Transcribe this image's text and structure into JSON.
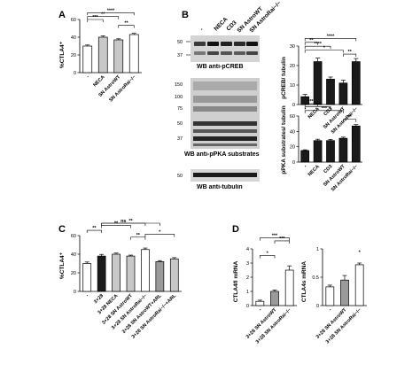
{
  "panel_letters": {
    "a": "A",
    "b": "B",
    "c": "C",
    "d": "D"
  },
  "blots": {
    "lane_labels": [
      "-",
      "NECA",
      "CD3",
      "SN AstroWT",
      "SN AstroRai−/−"
    ],
    "captions": {
      "pcreb": "WB anti-pCREB",
      "ppka": "WB anti-pPKA substrates",
      "tubulin": "WB anti-tubulin"
    },
    "mw_markers": {
      "pcreb": [
        "50",
        "37"
      ],
      "ppka": [
        "150",
        "100",
        "75",
        "50",
        "37"
      ],
      "tubulin": [
        "50"
      ]
    }
  },
  "colors": {
    "ink": "#000000",
    "light_bar": "#ffffff",
    "mid_bar": "#c8c8c8",
    "dark_bar": "#1a1a1a",
    "gray_bar": "#9a9a9a"
  },
  "chart_data": [
    {
      "id": "panel-a",
      "type": "bar",
      "ylabel": "%CTLA4⁺",
      "categories": [
        "-",
        "NECA",
        "SN AstroWT",
        "SN AstroRai−/−"
      ],
      "values": [
        30,
        40,
        37,
        43
      ],
      "errors": [
        1.2,
        1.5,
        1.2,
        1.3
      ],
      "fills": [
        "#ffffff",
        "#c8c8c8",
        "#c8c8c8",
        "#ffffff"
      ],
      "ylim": [
        0,
        60
      ],
      "yticks": [
        0,
        20,
        40,
        60
      ],
      "significance": [
        "****",
        "**",
        "***",
        "**"
      ]
    },
    {
      "id": "panel-b-top",
      "type": "bar",
      "ylabel": "pCREB/ tubulin",
      "categories": [
        "-",
        "NECA",
        "CD3",
        "SN AstroWT",
        "SN AstroRai−/−"
      ],
      "values": [
        4,
        22,
        13,
        11,
        22
      ],
      "errors": [
        1.2,
        1.8,
        1.1,
        1.5,
        1.6
      ],
      "fills": [
        "#1a1a1a",
        "#1a1a1a",
        "#1a1a1a",
        "#1a1a1a",
        "#1a1a1a"
      ],
      "ylim": [
        0,
        30
      ],
      "yticks": [
        0,
        10,
        20,
        30
      ],
      "significance": [
        "****",
        "**",
        "****",
        "*",
        "**"
      ]
    },
    {
      "id": "panel-b-bottom",
      "type": "bar",
      "ylabel": "pPKA substrates/ tubulin",
      "categories": [
        "-",
        "NECA",
        "CD3",
        "SN AstroWT",
        "SN AstroRai−/−"
      ],
      "values": [
        15,
        28,
        28,
        31,
        47
      ],
      "errors": [
        1.0,
        1.8,
        1.6,
        1.5,
        1.8
      ],
      "fills": [
        "#1a1a1a",
        "#1a1a1a",
        "#1a1a1a",
        "#1a1a1a",
        "#1a1a1a"
      ],
      "ylim": [
        0,
        60
      ],
      "yticks": [
        0,
        20,
        40,
        60
      ],
      "significance": [
        "**",
        "***",
        "***",
        "**"
      ]
    },
    {
      "id": "panel-c",
      "type": "bar",
      "ylabel": "%CTLA4⁺",
      "categories": [
        "-",
        "3+28",
        "3+28 NECA",
        "3+28 SN AstroWT",
        "3+28 SN AstroRai−/−",
        "3+28 SN AstroWT+ARL",
        "3+28 SN AstroRai−/−+ARL"
      ],
      "values": [
        30,
        38,
        40,
        38,
        45,
        32,
        35
      ],
      "errors": [
        1.6,
        1.8,
        1.2,
        1.0,
        1.6,
        1.1,
        1.3
      ],
      "fills": [
        "#ffffff",
        "#1a1a1a",
        "#c8c8c8",
        "#c8c8c8",
        "#ffffff",
        "#9a9a9a",
        "#c8c8c8"
      ],
      "ylim": [
        0,
        60
      ],
      "yticks": [
        0,
        20,
        40,
        60
      ],
      "significance": [
        "**",
        "ns",
        "**",
        "*",
        "**",
        "**"
      ]
    },
    {
      "id": "panel-d-left",
      "type": "bar",
      "ylabel": "CTLA4fl mRNA",
      "categories": [
        "-",
        "3+28 SN AstroWT",
        "3+28 SN AstroRai−/−"
      ],
      "values": [
        0.3,
        1.0,
        2.5
      ],
      "errors": [
        0.08,
        0.1,
        0.3
      ],
      "fills": [
        "#ffffff",
        "#9a9a9a",
        "#ffffff"
      ],
      "ylim": [
        0,
        4
      ],
      "yticks": [
        0,
        1,
        2,
        3,
        4
      ],
      "significance": [
        "***",
        "***",
        "*"
      ]
    },
    {
      "id": "panel-d-right",
      "type": "bar",
      "ylabel": "CTLA4s mRNA",
      "categories": [
        "-",
        "3+28 SN AstroWT",
        "3+28 SN AstroRai−/−"
      ],
      "values": [
        0.33,
        0.45,
        0.72
      ],
      "errors": [
        0.03,
        0.08,
        0.03
      ],
      "fills": [
        "#ffffff",
        "#9a9a9a",
        "#ffffff"
      ],
      "ylim": [
        0,
        1.0
      ],
      "yticks": [
        0,
        0.5,
        1.0
      ],
      "significance": [
        "*"
      ]
    }
  ]
}
